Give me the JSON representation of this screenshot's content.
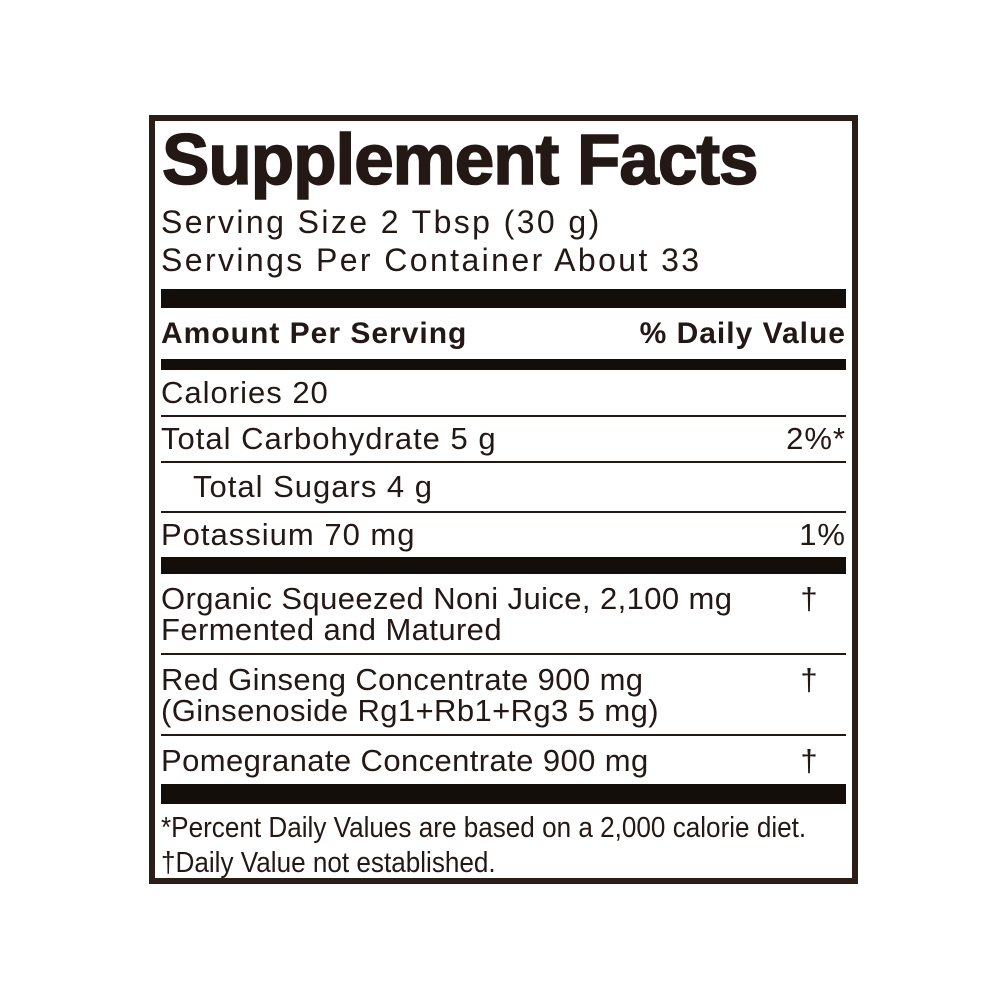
{
  "label": {
    "title": "Supplement Facts",
    "serving_size": "Serving Size 2 Tbsp (30 g)",
    "servings_per_container": "Servings Per Container About 33",
    "column_header": {
      "left": "Amount Per Serving",
      "right": "% Daily Value"
    },
    "nutrient_rows": [
      {
        "name": "Calories 20",
        "daily_value": "",
        "indented": false
      },
      {
        "name": "Total Carbohydrate 5 g",
        "daily_value": "2%*",
        "indented": false
      },
      {
        "name": "Total Sugars 4 g",
        "daily_value": "",
        "indented": true
      },
      {
        "name": "Potassium 70 mg",
        "daily_value": "1%",
        "indented": false
      }
    ],
    "ingredient_rows": [
      {
        "line1": "Organic Squeezed Noni Juice, 2,100 mg",
        "line2": "Fermented and Matured",
        "daily_value": "†"
      },
      {
        "line1": "Red Ginseng Concentrate 900 mg",
        "line2": "(Ginsenoside Rg1+Rb1+Rg3 5 mg)",
        "daily_value": "†"
      },
      {
        "line1": "Pomegranate Concentrate 900 mg",
        "daily_value": "†"
      }
    ],
    "footnotes": [
      "*Percent Daily Values are based on a 2,000 calorie diet.",
      "†Daily Value not established."
    ]
  },
  "colors": {
    "text": "#231815",
    "bars": "#140e0b",
    "border": "#2b1e19",
    "background": "#ffffff"
  }
}
